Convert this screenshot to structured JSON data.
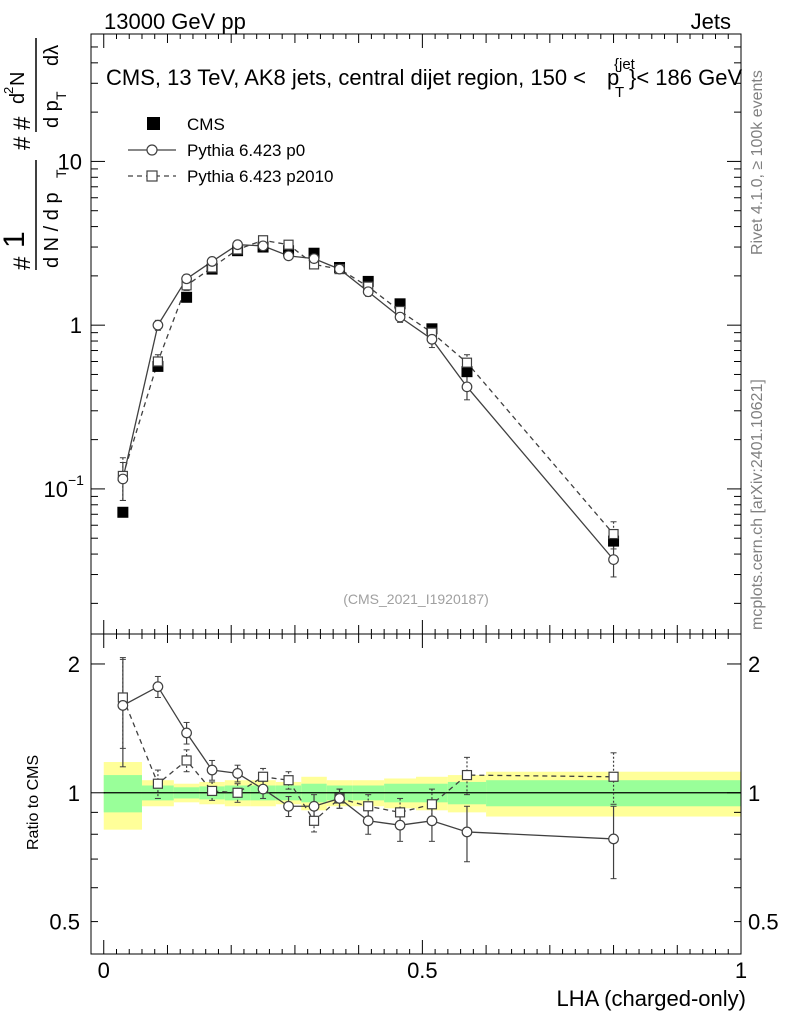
{
  "header": {
    "left": "13000 GeV pp",
    "right": "Jets"
  },
  "side_text": {
    "rivet": "Rivet 4.1.0, ≥ 100k events",
    "mcplots": "mcplots.cern.ch [arXiv:2401.10621]"
  },
  "analysis_id": "(CMS_2021_I1920187)",
  "chart_data": [
    {
      "panel": "main",
      "type": "scatter",
      "title": "CMS, 13 TeV, AK8 jets, central dijet region, 150 < p_T^{jet} < 186 GeV",
      "title_parts": {
        "pre": "CMS, 13 TeV, AK8 jets, central dijet region, 150 <",
        "p": "p",
        "sub": "T",
        "sup": "{jet",
        "post": "}< 186 GeV"
      },
      "ylabel_parts": {
        "hash1": "#",
        "one": "1",
        "hash2": "#",
        "hash3": "#",
        "dN": "d N / d p",
        "T1": "T",
        "d2N": "d",
        "two": "2",
        "N": "N",
        "dp": "d p",
        "T2": "T",
        "dl": "dλ"
      },
      "yscale": "log",
      "ylim": [
        0.013,
        60
      ],
      "xlim": [
        -0.02,
        1.0
      ],
      "ytick_labels": [
        {
          "value": 0.1,
          "base": "10",
          "exp": "−1"
        },
        {
          "value": 1,
          "label": "1"
        },
        {
          "value": 10,
          "label": "10"
        }
      ],
      "legend": {
        "position": "top-left",
        "entries": [
          {
            "label": "CMS",
            "marker": "filled-square"
          },
          {
            "label": "Pythia 6.423 p0",
            "marker": "open-circle",
            "line": "solid"
          },
          {
            "label": "Pythia 6.423 p2010",
            "marker": "open-square",
            "line": "dashed"
          }
        ]
      },
      "series": [
        {
          "name": "CMS",
          "x": [
            0.03,
            0.085,
            0.13,
            0.17,
            0.21,
            0.25,
            0.29,
            0.33,
            0.37,
            0.415,
            0.465,
            0.515,
            0.57,
            0.8
          ],
          "y": [
            0.072,
            0.56,
            1.48,
            2.2,
            2.85,
            3.0,
            2.85,
            2.75,
            2.25,
            1.85,
            1.35,
            0.95,
            0.52,
            0.048
          ]
        },
        {
          "name": "Pythia 6.423 p0",
          "x": [
            0.03,
            0.085,
            0.13,
            0.17,
            0.21,
            0.25,
            0.29,
            0.33,
            0.37,
            0.415,
            0.465,
            0.515,
            0.57,
            0.8
          ],
          "y": [
            0.115,
            1.0,
            1.92,
            2.45,
            3.1,
            3.05,
            2.65,
            2.55,
            2.2,
            1.6,
            1.12,
            0.82,
            0.42,
            0.037
          ],
          "err": [
            0.03,
            0.07,
            0.12,
            0.12,
            0.12,
            0.12,
            0.12,
            0.12,
            0.1,
            0.1,
            0.08,
            0.09,
            0.07,
            0.008
          ]
        },
        {
          "name": "Pythia 6.423 p2010",
          "x": [
            0.03,
            0.085,
            0.13,
            0.17,
            0.21,
            0.25,
            0.29,
            0.33,
            0.37,
            0.415,
            0.465,
            0.515,
            0.57,
            0.8
          ],
          "y": [
            0.12,
            0.6,
            1.75,
            2.25,
            2.9,
            3.3,
            3.1,
            2.35,
            2.2,
            1.72,
            1.22,
            0.9,
            0.59,
            0.053
          ],
          "err": [
            0.035,
            0.06,
            0.12,
            0.12,
            0.12,
            0.12,
            0.12,
            0.12,
            0.1,
            0.1,
            0.08,
            0.09,
            0.07,
            0.01
          ]
        }
      ]
    },
    {
      "panel": "ratio",
      "type": "line",
      "ylabel": "Ratio to CMS",
      "xlabel": "LHA (charged-only)",
      "yscale": "log",
      "ylim": [
        0.42,
        2.35
      ],
      "xlim": [
        -0.02,
        1.0
      ],
      "ytick_labels": [
        {
          "value": 0.5,
          "label": "0.5"
        },
        {
          "value": 1,
          "label": "1"
        },
        {
          "value": 2,
          "label": "2"
        }
      ],
      "xtick_labels": [
        {
          "value": 0,
          "label": "0"
        },
        {
          "value": 0.5,
          "label": "0.5"
        },
        {
          "value": 1,
          "label": "1"
        }
      ],
      "bin_edges": [
        0.0,
        0.06,
        0.11,
        0.15,
        0.19,
        0.23,
        0.27,
        0.31,
        0.35,
        0.39,
        0.44,
        0.49,
        0.54,
        0.6,
        1.0
      ],
      "band_outer": [
        0.18,
        0.07,
        0.05,
        0.06,
        0.07,
        0.07,
        0.06,
        0.09,
        0.07,
        0.07,
        0.08,
        0.09,
        0.1,
        0.12
      ],
      "band_inner": [
        0.1,
        0.04,
        0.03,
        0.035,
        0.04,
        0.04,
        0.04,
        0.05,
        0.04,
        0.04,
        0.05,
        0.05,
        0.06,
        0.07
      ],
      "colors": {
        "outer_band": "#ffff99",
        "inner_band": "#99ff99"
      },
      "series": [
        {
          "name": "Pythia 6.423 p0",
          "x": [
            0.03,
            0.085,
            0.13,
            0.17,
            0.21,
            0.25,
            0.29,
            0.33,
            0.37,
            0.415,
            0.465,
            0.515,
            0.57,
            0.8
          ],
          "y": [
            1.6,
            1.77,
            1.38,
            1.13,
            1.11,
            1.02,
            0.93,
            0.93,
            0.97,
            0.86,
            0.84,
            0.86,
            0.81,
            0.78
          ],
          "err": [
            0.45,
            0.1,
            0.08,
            0.06,
            0.05,
            0.05,
            0.05,
            0.06,
            0.05,
            0.06,
            0.07,
            0.09,
            0.12,
            0.15
          ]
        },
        {
          "name": "Pythia 6.423 p2010",
          "x": [
            0.03,
            0.085,
            0.13,
            0.17,
            0.21,
            0.25,
            0.29,
            0.33,
            0.37,
            0.415,
            0.465,
            0.515,
            0.57,
            0.8
          ],
          "y": [
            1.67,
            1.05,
            1.19,
            1.01,
            1.0,
            1.09,
            1.07,
            0.86,
            0.97,
            0.93,
            0.9,
            0.94,
            1.1,
            1.09
          ],
          "err": [
            0.4,
            0.08,
            0.07,
            0.05,
            0.05,
            0.05,
            0.05,
            0.05,
            0.05,
            0.06,
            0.07,
            0.08,
            0.11,
            0.15
          ]
        }
      ]
    }
  ]
}
